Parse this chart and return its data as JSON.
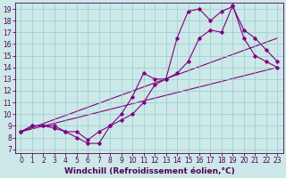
{
  "xlabel": "Windchill (Refroidissement éolien,°C)",
  "bg_color": "#cce8e8",
  "line_color": "#800080",
  "xlim_min": -0.5,
  "xlim_max": 23.5,
  "ylim_min": 6.7,
  "ylim_max": 19.5,
  "xticks": [
    0,
    1,
    2,
    3,
    4,
    5,
    6,
    7,
    8,
    9,
    10,
    11,
    12,
    13,
    14,
    15,
    16,
    17,
    18,
    19,
    20,
    21,
    22,
    23
  ],
  "yticks": [
    7,
    8,
    9,
    10,
    11,
    12,
    13,
    14,
    15,
    16,
    17,
    18,
    19
  ],
  "series1_x": [
    0,
    1,
    2,
    3,
    4,
    5,
    6,
    7,
    8,
    9,
    10,
    11,
    12,
    13,
    14,
    15,
    16,
    17,
    18,
    19,
    20,
    21,
    22,
    23
  ],
  "series1_y": [
    8.5,
    9.0,
    9.0,
    9.0,
    8.5,
    8.0,
    7.5,
    7.5,
    9.0,
    10.0,
    11.5,
    13.5,
    13.0,
    13.0,
    16.5,
    18.8,
    19.0,
    18.0,
    18.8,
    19.2,
    17.2,
    16.5,
    15.5,
    14.5
  ],
  "series2_x": [
    0,
    1,
    2,
    3,
    4,
    5,
    6,
    7,
    8,
    9,
    10,
    11,
    12,
    13,
    14,
    15,
    16,
    17,
    18,
    19,
    20,
    21,
    22,
    23
  ],
  "series2_y": [
    8.5,
    9.0,
    9.0,
    8.8,
    8.5,
    8.5,
    7.8,
    8.5,
    9.0,
    9.5,
    10.0,
    11.0,
    12.5,
    13.0,
    13.5,
    14.5,
    16.5,
    17.2,
    17.0,
    19.3,
    16.5,
    15.0,
    14.5,
    14.0
  ],
  "series3_x": [
    0,
    23
  ],
  "series3_y": [
    8.5,
    16.5
  ],
  "series4_x": [
    0,
    23
  ],
  "series4_y": [
    8.5,
    14.0
  ],
  "grid_color": "#99cccc",
  "xlabel_fontsize": 6.5,
  "tick_fontsize": 5.5,
  "marker": "D",
  "markersize": 1.8,
  "linewidth": 0.8
}
